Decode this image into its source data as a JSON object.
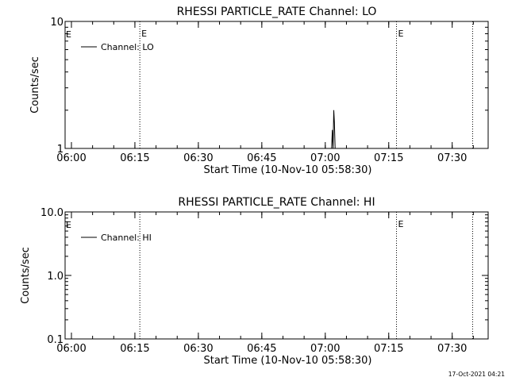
{
  "chart_data": [
    {
      "type": "line",
      "title": "RHESSI PARTICLE_RATE Channel: LO",
      "xlabel": "Start Time (10-Nov-10 05:58:30)",
      "ylabel": "Counts/sec",
      "y_scale": "log",
      "ylim": [
        1,
        10
      ],
      "y_ticks": [
        {
          "v": 1,
          "label": "1"
        },
        {
          "v": 10,
          "label": "10"
        }
      ],
      "x_ticks": [
        "06:00",
        "06:15",
        "06:30",
        "06:45",
        "07:00",
        "07:15",
        "07:30"
      ],
      "xlim": [
        "05:58:30",
        "07:38:30"
      ],
      "legend": {
        "label": "Channel: LO",
        "placement": "top-left"
      },
      "markers": [
        {
          "time": "06:16:10",
          "label": "E"
        },
        {
          "time": "07:16:50",
          "label": "E"
        },
        {
          "time": "07:34:50",
          "label": ""
        }
      ],
      "edge_markers": [
        {
          "time": "05:58:30",
          "label": "E"
        }
      ],
      "series": [
        {
          "x": [
            "07:01:30",
            "07:01:40",
            "07:01:50",
            "07:02:00",
            "07:02:10",
            "07:02:20"
          ],
          "y": [
            1,
            1.4,
            1.0,
            2.0,
            1.6,
            1
          ]
        }
      ]
    },
    {
      "type": "line",
      "title": "RHESSI PARTICLE_RATE Channel: HI",
      "xlabel": "Start Time (10-Nov-10 05:58:30)",
      "ylabel": "Counts/sec",
      "y_scale": "log",
      "ylim": [
        0.1,
        10
      ],
      "y_ticks": [
        {
          "v": 0.1,
          "label": "0.1"
        },
        {
          "v": 1,
          "label": "1.0"
        },
        {
          "v": 10,
          "label": "10.0"
        }
      ],
      "x_ticks": [
        "06:00",
        "06:15",
        "06:30",
        "06:45",
        "07:00",
        "07:15",
        "07:30"
      ],
      "xlim": [
        "05:58:30",
        "07:38:30"
      ],
      "legend": {
        "label": "Channel: HI",
        "placement": "top-left"
      },
      "markers": [
        {
          "time": "06:16:10",
          "label": ""
        },
        {
          "time": "07:16:50",
          "label": "E"
        },
        {
          "time": "07:34:50",
          "label": ""
        }
      ],
      "edge_markers": [
        {
          "time": "05:58:30",
          "label": "E"
        }
      ],
      "series": []
    }
  ],
  "footer": {
    "timestamp": "17-Oct-2021 04:21"
  }
}
